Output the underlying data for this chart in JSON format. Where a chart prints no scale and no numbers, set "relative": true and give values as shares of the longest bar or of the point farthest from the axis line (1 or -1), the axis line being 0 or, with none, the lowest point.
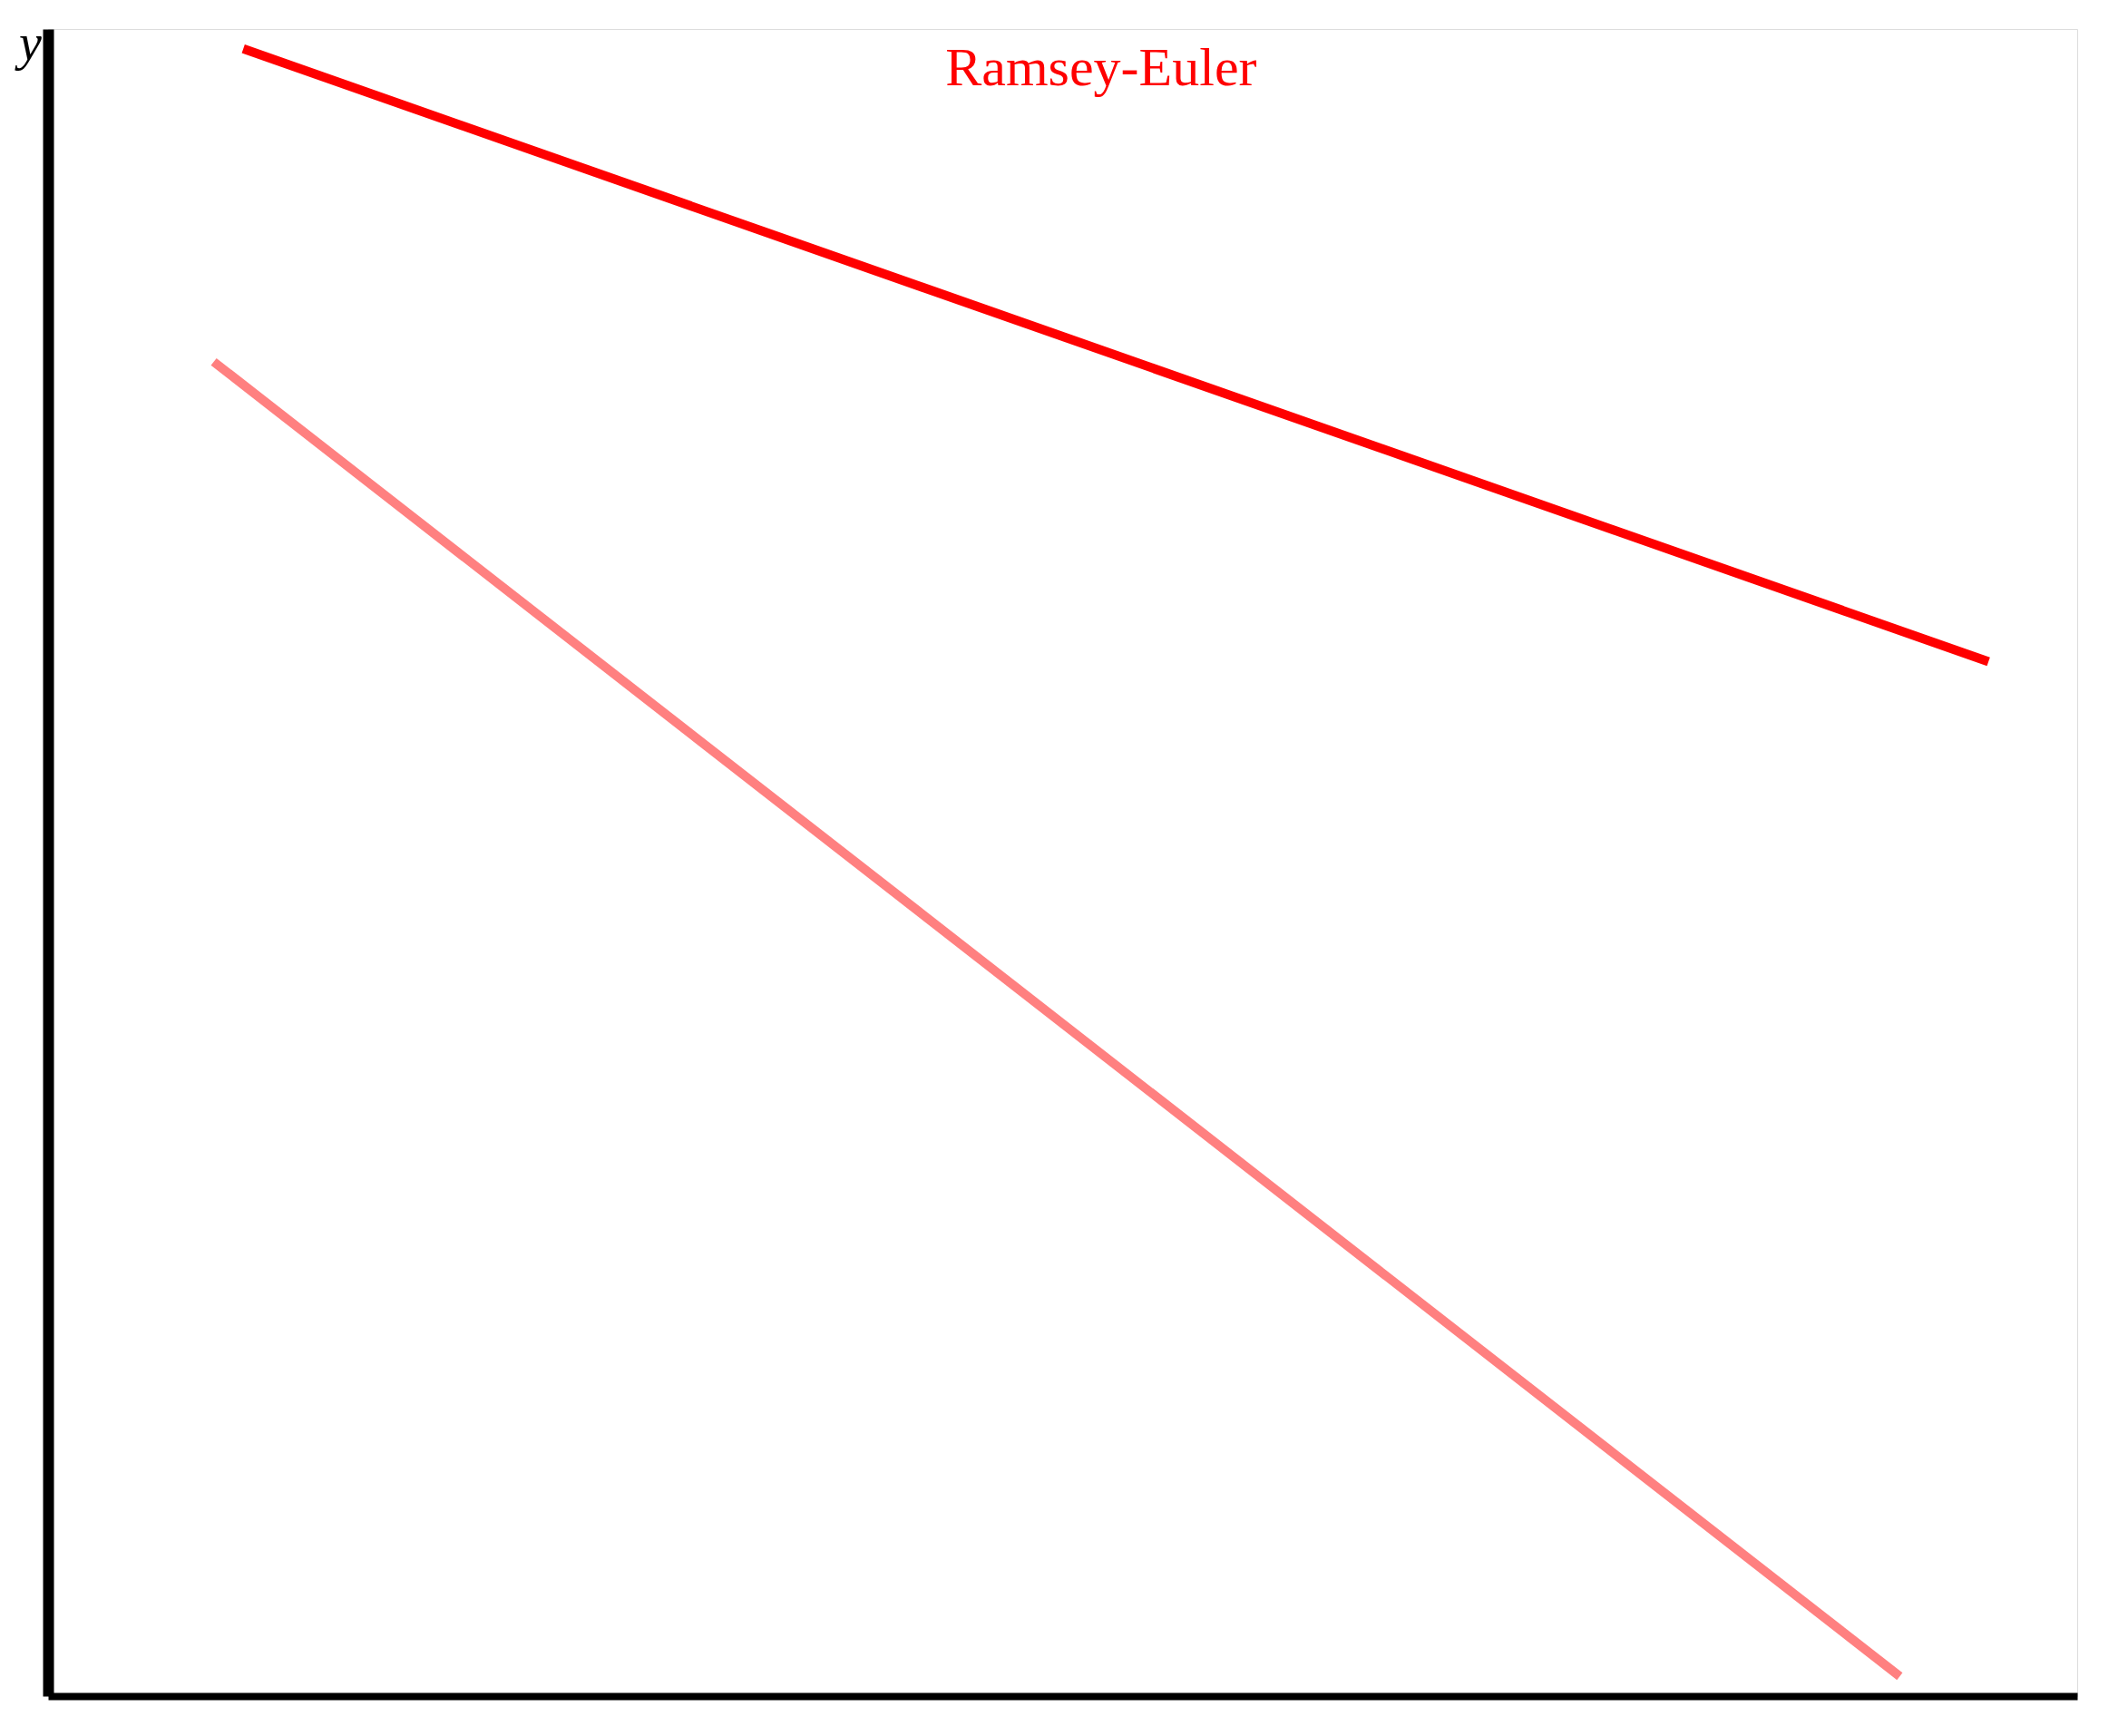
{
  "chart_data": {
    "type": "line",
    "relative": true,
    "ylabel": "y",
    "categories": [
      null,
      null,
      null,
      null,
      null,
      null,
      null,
      null,
      null,
      null,
      null,
      null,
      null,
      null,
      null,
      null,
      null,
      null,
      null,
      null,
      null,
      null,
      null,
      null,
      null,
      null,
      null,
      null,
      null,
      null,
      null,
      null,
      null,
      null,
      null,
      null,
      null,
      null,
      null,
      null,
      null,
      null,
      null,
      null,
      null,
      null,
      null,
      null,
      null,
      null,
      null,
      null,
      null,
      null,
      null,
      null,
      null,
      null,
      null,
      null,
      null,
      null,
      null,
      null,
      null,
      null,
      null
    ],
    "series": [
      {
        "name": "Ramsey-Euler",
        "color": "#ff0000",
        "values": [
          null,
          null,
          null,
          null,
          1.0,
          null,
          null,
          null,
          null,
          null,
          null,
          null,
          null,
          null,
          null,
          null,
          null,
          null,
          null,
          null,
          null,
          null,
          null,
          null,
          null,
          null,
          null,
          null,
          null,
          null,
          null,
          null,
          null,
          null,
          null,
          null,
          null,
          null,
          null,
          null,
          null,
          null,
          null,
          null,
          null,
          null,
          null,
          null,
          null,
          null,
          null,
          null,
          null,
          null,
          null,
          null,
          null,
          null,
          null,
          null,
          null,
          null,
          null,
          0.628,
          null,
          null,
          null
        ]
      },
      {
        "color": "#ff8080",
        "values": [
          null,
          null,
          null,
          0.81,
          null,
          null,
          null,
          null,
          null,
          null,
          null,
          null,
          null,
          null,
          null,
          null,
          null,
          null,
          null,
          null,
          null,
          null,
          null,
          null,
          null,
          null,
          null,
          null,
          null,
          null,
          null,
          null,
          null,
          null,
          null,
          null,
          null,
          null,
          null,
          null,
          null,
          null,
          null,
          null,
          null,
          null,
          null,
          null,
          null,
          null,
          null,
          null,
          null,
          null,
          null,
          null,
          null,
          null,
          null,
          null,
          0.012,
          null,
          null,
          null,
          null,
          null,
          null
        ]
      }
    ]
  }
}
